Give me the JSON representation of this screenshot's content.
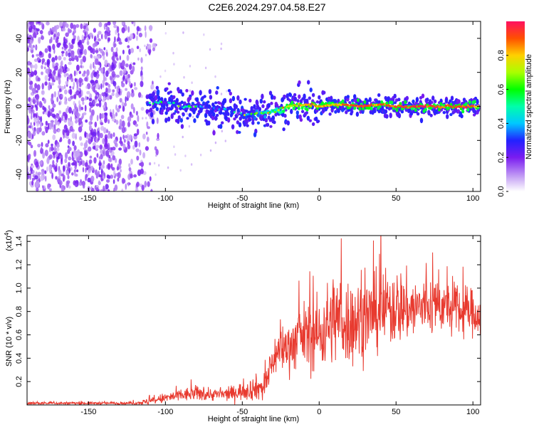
{
  "title": "C2E6.2024.297.04.58.E27",
  "chart_data": [
    {
      "type": "heatmap",
      "xlabel": "Height of straight line (km)",
      "ylabel": "Frequency (Hz)",
      "xlim": [
        -190,
        105
      ],
      "ylim": [
        -50,
        50
      ],
      "xticks": [
        -150,
        -100,
        -50,
        0,
        50,
        100
      ],
      "yticks": [
        -40,
        -20,
        0,
        20,
        40
      ],
      "xtick_labels": [
        "-150",
        "-100",
        "-50",
        "0",
        "50",
        "100"
      ],
      "ytick_labels": [
        "-40",
        "-20",
        "0",
        "20",
        "40"
      ],
      "colorbar": {
        "label": "Normalized spectral amplitude",
        "range": [
          0,
          1
        ],
        "ticks": [
          0.0,
          0.2,
          0.4,
          0.6,
          0.8
        ],
        "tick_labels": [
          "0.0",
          "0.2",
          "0.4",
          "0.6",
          "0.8"
        ],
        "colormap": "rainbow"
      },
      "ridge": {
        "x": [
          -110,
          -100,
          -90,
          -80,
          -70,
          -60,
          -50,
          -40,
          -30,
          -20,
          -10,
          0,
          10,
          20,
          30,
          40,
          50,
          60,
          70,
          80,
          90,
          100
        ],
        "freq": [
          2,
          3,
          0,
          0,
          -1,
          -2,
          -5,
          -5,
          -3,
          0,
          1,
          0,
          1,
          1,
          0,
          1,
          0,
          0,
          0,
          0,
          0,
          0
        ],
        "amplitude": [
          0.3,
          0.35,
          0.35,
          0.3,
          0.35,
          0.35,
          0.35,
          0.45,
          0.55,
          0.75,
          0.85,
          0.85,
          0.85,
          0.9,
          0.9,
          0.9,
          0.92,
          0.92,
          0.92,
          0.92,
          0.9,
          0.85
        ]
      },
      "noise_region_x": [
        -190,
        -115
      ]
    },
    {
      "type": "line",
      "xlabel": "Height of straight line (km)",
      "ylabel": "SNR (10 * v/v)",
      "y_multiplier_label": "(x10^4)",
      "xlim": [
        -190,
        105
      ],
      "ylim": [
        0,
        1.45
      ],
      "xticks": [
        -150,
        -100,
        -50,
        0,
        50,
        100
      ],
      "yticks": [
        0.2,
        0.4,
        0.6,
        0.8,
        1.0,
        1.2,
        1.4
      ],
      "xtick_labels": [
        "-150",
        "-100",
        "-50",
        "0",
        "50",
        "100"
      ],
      "ytick_labels": [
        "0.2",
        "0.4",
        "0.6",
        "0.8",
        "1.0",
        "1.2",
        "1.4"
      ],
      "series": [
        {
          "color": "#e83a2f",
          "envelope_x": [
            -190,
            -150,
            -120,
            -110,
            -100,
            -90,
            -80,
            -70,
            -60,
            -50,
            -40,
            -35,
            -30,
            -25,
            -20,
            -10,
            0,
            10,
            20,
            30,
            40,
            50,
            60,
            70,
            80,
            90,
            100,
            105
          ],
          "envelope_mean": [
            0.015,
            0.015,
            0.015,
            0.03,
            0.06,
            0.08,
            0.1,
            0.09,
            0.09,
            0.12,
            0.15,
            0.15,
            0.4,
            0.48,
            0.5,
            0.6,
            0.6,
            0.75,
            0.7,
            0.75,
            0.8,
            0.85,
            0.82,
            0.85,
            0.85,
            0.8,
            0.8,
            0.75
          ],
          "envelope_spread": [
            0.01,
            0.01,
            0.01,
            0.03,
            0.04,
            0.05,
            0.06,
            0.05,
            0.05,
            0.07,
            0.1,
            0.12,
            0.15,
            0.18,
            0.2,
            0.25,
            0.3,
            0.35,
            0.35,
            0.3,
            0.3,
            0.3,
            0.25,
            0.25,
            0.2,
            0.2,
            0.18,
            0.15
          ]
        }
      ]
    }
  ]
}
